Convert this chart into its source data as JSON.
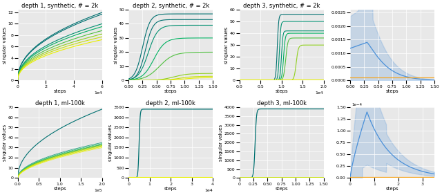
{
  "titles": [
    "depth 1, synthetic, # = 2k",
    "depth 2, synthetic, # = 2k",
    "depth 3, synthetic, # = 2k",
    "",
    "depth 1, ml-100k",
    "depth 2, ml-100k",
    "depth 3, ml-100k",
    ""
  ],
  "xlabel": "steps",
  "ylabel": "singular values",
  "background": "#e8e8e8",
  "green_colors": [
    "#007070",
    "#009070",
    "#00b060",
    "#50c040",
    "#90d020",
    "#c8e010",
    "#e8f000"
  ],
  "blue_color": "#4a90d9",
  "orange_color": "#f5a623",
  "grid_color": "#ffffff"
}
